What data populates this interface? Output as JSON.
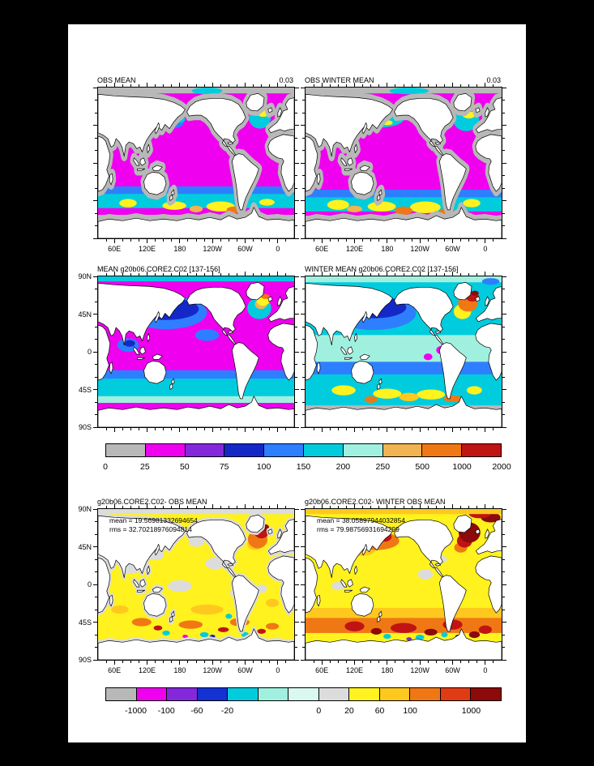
{
  "window": {
    "background": "#000000",
    "paper": "#ffffff"
  },
  "axis": {
    "lon_labels": [
      {
        "text": "60E",
        "f": 0.0833
      },
      {
        "text": "120E",
        "f": 0.25
      },
      {
        "text": "180",
        "f": 0.4167
      },
      {
        "text": "120W",
        "f": 0.5833
      },
      {
        "text": "60W",
        "f": 0.75
      },
      {
        "text": "0",
        "f": 0.9167
      }
    ],
    "lat_labels": [
      {
        "text": "90N",
        "f": 0
      },
      {
        "text": "45N",
        "f": 0.25
      },
      {
        "text": "0",
        "f": 0.5
      },
      {
        "text": "45S",
        "f": 0.75
      },
      {
        "text": "90S",
        "f": 1
      }
    ]
  },
  "panels": [
    {
      "key": "obs_mean",
      "title": "OBS MEAN",
      "right_title": "0.03",
      "lon_labels": true,
      "lat_labels": false
    },
    {
      "key": "obs_winter_mean",
      "title": "OBS WINTER MEAN",
      "right_title": "0.03",
      "lon_labels": true,
      "lat_labels": false
    },
    {
      "key": "model_mean",
      "title": "MEAN g20b06.CORE2.C02 [137-156]",
      "right_title": "",
      "lon_labels": false,
      "lat_labels": true
    },
    {
      "key": "model_winter_mean",
      "title": "WINTER MEAN g20b06.CORE2.C02 [137-156]",
      "right_title": "",
      "lon_labels": false,
      "lat_labels": false
    },
    {
      "key": "diff_mean",
      "title": "g20b06.CORE2.C02- OBS MEAN",
      "right_title": "",
      "lon_labels": true,
      "lat_labels": true,
      "annotation": {
        "mean": "mean = 19.56981332694654",
        "rms": "rms = 32.70218976094814"
      }
    },
    {
      "key": "diff_winter",
      "title": "g20b06.CORE2.C02- WINTER OBS MEAN",
      "right_title": "",
      "lon_labels": true,
      "lat_labels": false,
      "annotation": {
        "mean": "mean = 38.05897944032854",
        "rms": "rms = 79.98756931694299"
      }
    }
  ],
  "colorbars": [
    {
      "name": "depth-colorbar",
      "colors": [
        "#b8b8b8",
        "#ef00ef",
        "#8428dc",
        "#1428c8",
        "#2e7fff",
        "#00ccdd",
        "#a0f0e0",
        "#f0b450",
        "#f07814",
        "#c01414"
      ],
      "labels": [
        {
          "text": "0",
          "f": 0
        },
        {
          "text": "25",
          "f": 0.1
        },
        {
          "text": "50",
          "f": 0.2
        },
        {
          "text": "75",
          "f": 0.3
        },
        {
          "text": "100",
          "f": 0.4
        },
        {
          "text": "150",
          "f": 0.5
        },
        {
          "text": "200",
          "f": 0.6
        },
        {
          "text": "250",
          "f": 0.7
        },
        {
          "text": "500",
          "f": 0.8
        },
        {
          "text": "1000",
          "f": 0.9
        },
        {
          "text": "2000",
          "f": 1
        }
      ]
    },
    {
      "name": "difference-colorbar",
      "colors": [
        "#b8b8b8",
        "#ef00ef",
        "#8428dc",
        "#1432d2",
        "#00ccdd",
        "#a0f0e0",
        "#d8f8f0",
        "#dcdcdc",
        "#fff21e",
        "#ffc81e",
        "#f07814",
        "#e03c14",
        "#8c0a0a"
      ],
      "labels": [
        {
          "text": "-1000",
          "f": 0.0769
        },
        {
          "text": "-100",
          "f": 0.1538
        },
        {
          "text": "-60",
          "f": 0.2308
        },
        {
          "text": "-20",
          "f": 0.3077
        },
        {
          "text": "0",
          "f": 0.5385
        },
        {
          "text": "20",
          "f": 0.6154
        },
        {
          "text": "60",
          "f": 0.6923
        },
        {
          "text": "100",
          "f": 0.7692
        },
        {
          "text": "1000",
          "f": 0.9231
        }
      ]
    }
  ],
  "chart_data": {
    "type": "heatmap",
    "description": "Six global ocean lat-lon maps (longitude from 30E eastward around to 30E, Pacific centered): observed mean, observed winter mean, model mean, model winter mean (shared depth colorbar), and two model-minus-observation difference maps (shared difference colorbar).",
    "x_tick_labels": [
      "60E",
      "120E",
      "180",
      "120W",
      "60W",
      "0"
    ],
    "y_tick_labels": [
      "90N",
      "45N",
      "0",
      "45S",
      "90S"
    ],
    "panels": [
      {
        "title": "OBS MEAN",
        "right_label": "0.03",
        "colorbar": "depth"
      },
      {
        "title": "OBS WINTER MEAN",
        "right_label": "0.03",
        "colorbar": "depth"
      },
      {
        "title": "MEAN g20b06.CORE2.C02 [137-156]",
        "colorbar": "depth"
      },
      {
        "title": "WINTER MEAN g20b06.CORE2.C02 [137-156]",
        "colorbar": "depth"
      },
      {
        "title": "g20b06.CORE2.C02- OBS MEAN",
        "colorbar": "difference",
        "mean": 19.56981332694654,
        "rms": 32.70218976094814
      },
      {
        "title": "g20b06.CORE2.C02- WINTER OBS MEAN",
        "colorbar": "difference",
        "mean": 38.05897944032854,
        "rms": 79.987569316943
      }
    ],
    "colorbar_levels": {
      "depth": [
        0,
        25,
        50,
        75,
        100,
        150,
        200,
        250,
        500,
        1000,
        2000
      ],
      "difference": [
        -1000,
        -100,
        -60,
        -20,
        0,
        20,
        60,
        100,
        1000
      ]
    }
  }
}
